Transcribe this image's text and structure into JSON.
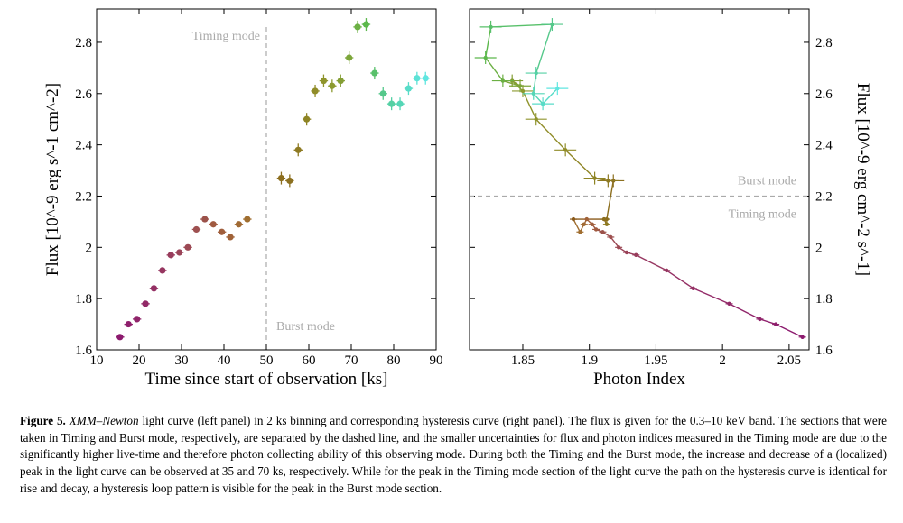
{
  "chart_data": [
    {
      "type": "scatter",
      "panel": "left",
      "xlabel": "Time since start of observation [ks]",
      "ylabel": "Flux [10^-9 erg s^-1 cm^-2]",
      "xlim": [
        10,
        90
      ],
      "ylim": [
        1.6,
        2.93
      ],
      "xticks": [
        "10",
        "20",
        "30",
        "40",
        "50",
        "60",
        "70",
        "80",
        "90"
      ],
      "yticks": [
        "1.6",
        "1.8",
        "2",
        "2.2",
        "2.4",
        "2.6",
        "2.8"
      ],
      "divider_x": 50,
      "annotations": [
        "Timing mode",
        "Burst mode"
      ],
      "x": [
        15.5,
        17.5,
        19.5,
        21.5,
        23.5,
        25.5,
        27.5,
        29.5,
        31.5,
        33.5,
        35.5,
        37.5,
        39.5,
        41.5,
        43.5,
        45.5,
        53.5,
        55.5,
        57.5,
        59.5,
        61.5,
        63.5,
        65.5,
        67.5,
        69.5,
        71.5,
        73.5,
        75.5,
        77.5,
        79.5,
        81.5,
        83.5,
        85.5,
        87.5
      ],
      "y": [
        1.65,
        1.7,
        1.72,
        1.78,
        1.84,
        1.91,
        1.97,
        1.98,
        2.0,
        2.07,
        2.11,
        2.09,
        2.06,
        2.04,
        2.09,
        2.11,
        2.27,
        2.26,
        2.38,
        2.5,
        2.61,
        2.65,
        2.63,
        2.65,
        2.74,
        2.86,
        2.87,
        2.68,
        2.6,
        2.56,
        2.56,
        2.62,
        2.66,
        2.66
      ],
      "colors": [
        "#8c1a6e",
        "#8e1f6c",
        "#90246a",
        "#922967",
        "#943064",
        "#963660",
        "#983c5c",
        "#9a4358",
        "#9c4954",
        "#9e5050",
        "#9c524a",
        "#a05a40",
        "#a05e3c",
        "#a06238",
        "#a06a34",
        "#a06e30",
        "#8c6e1e",
        "#8c7020",
        "#8e7a22",
        "#8e8424",
        "#908c28",
        "#8f942c",
        "#8c9a30",
        "#849e34",
        "#7ca63a",
        "#6cb044",
        "#5cb84c",
        "#58c06a",
        "#54c88a",
        "#54d0a4",
        "#54d6b6",
        "#58dcc8",
        "#5ce2d6",
        "#60e6e0"
      ]
    },
    {
      "type": "line",
      "panel": "right",
      "xlabel": "Photon Index",
      "ylabel": "Flux [10^-9 erg cm^-2 s^-1]",
      "xlim": [
        1.81,
        2.065
      ],
      "ylim": [
        1.6,
        2.93
      ],
      "xticks": [
        "1.85",
        "1.9",
        "1.95",
        "2",
        "2.05"
      ],
      "yticks": [
        "1.6",
        "1.8",
        "2",
        "2.2",
        "2.4",
        "2.6",
        "2.8"
      ],
      "divider_y": 2.2,
      "annotations": [
        "Burst mode",
        "Timing mode"
      ],
      "x": [
        2.06,
        2.04,
        2.028,
        2.005,
        1.978,
        1.958,
        1.935,
        1.928,
        1.922,
        1.916,
        1.91,
        1.905,
        1.902,
        1.898,
        1.896,
        1.893,
        1.888,
        1.911,
        1.913,
        1.913,
        1.918,
        1.914,
        1.904,
        1.882,
        1.86,
        1.85,
        1.842,
        1.848,
        1.835,
        1.822,
        1.826,
        1.872,
        1.86,
        1.858,
        1.865,
        1.876
      ],
      "y": [
        1.65,
        1.7,
        1.72,
        1.78,
        1.84,
        1.91,
        1.97,
        1.98,
        2.0,
        2.04,
        2.06,
        2.07,
        2.09,
        2.11,
        2.09,
        2.06,
        2.11,
        2.11,
        2.09,
        2.11,
        2.26,
        2.26,
        2.27,
        2.38,
        2.5,
        2.61,
        2.65,
        2.63,
        2.65,
        2.74,
        2.86,
        2.87,
        2.68,
        2.6,
        2.56,
        2.62
      ],
      "colors": [
        "#8c1a6e",
        "#8e1f6c",
        "#90246a",
        "#922967",
        "#943064",
        "#963660",
        "#983c5c",
        "#9a4358",
        "#9c4954",
        "#9e5050",
        "#9c524a",
        "#a05a40",
        "#a05e3c",
        "#a06238",
        "#a06a34",
        "#a06e30",
        "#8a5a1a",
        "#8c6e1e",
        "#8e7a22",
        "#8c6e1e",
        "#8c7020",
        "#8e7a22",
        "#8e8424",
        "#908c28",
        "#8f942c",
        "#8c9a30",
        "#849e34",
        "#7ca63a",
        "#6cb044",
        "#5cb84c",
        "#58c06a",
        "#54c88a",
        "#54d0a4",
        "#54d6b6",
        "#58dcc8",
        "#60e6e0"
      ]
    }
  ],
  "caption": {
    "label": "Figure 5.",
    "mission": "XMM–Newton",
    "body": " light curve (left panel) in 2 ks binning and corresponding hysteresis curve (right panel). The flux is given for the 0.3–10 keV band. The sections that were taken in Timing and Burst mode, respectively, are separated by the dashed line, and the smaller uncertainties for flux and photon indices measured in the Timing mode are due to the significantly higher live-time and therefore photon collecting ability of this observing mode. During both the Timing and the Burst mode, the increase and decrease of a (localized) peak in the light curve can be observed at 35 and 70 ks, respectively. While for the peak in the Timing mode section of the light curve the path on the hysteresis curve is identical for rise and decay, a hysteresis loop pattern is visible for the peak in the Burst mode section."
  }
}
